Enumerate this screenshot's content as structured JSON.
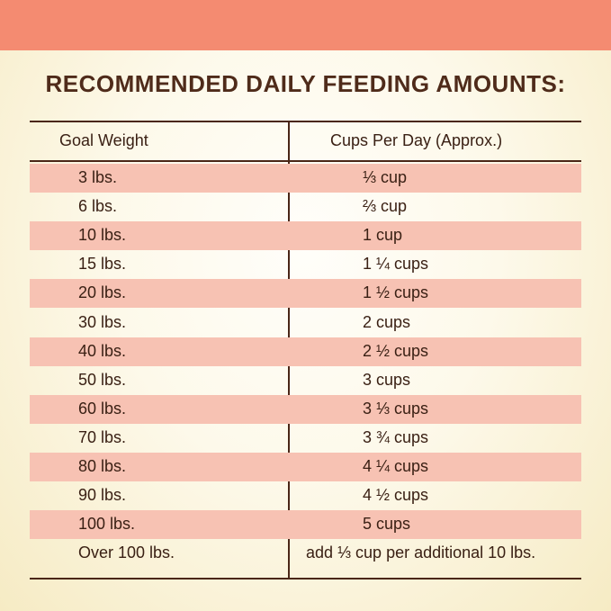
{
  "header": {
    "band_color": "#f48b71",
    "title": "RECOMMENDED DAILY FEEDING AMOUNTS:"
  },
  "table": {
    "columns": [
      "Goal Weight",
      "Cups Per Day (Approx.)"
    ],
    "rows": [
      {
        "weight": "3 lbs.",
        "cups": "⅓ cup"
      },
      {
        "weight": "6 lbs.",
        "cups": "⅔ cup"
      },
      {
        "weight": "10 lbs.",
        "cups": "1 cup"
      },
      {
        "weight": "15 lbs.",
        "cups": "1 ¼ cups"
      },
      {
        "weight": "20 lbs.",
        "cups": "1 ½ cups"
      },
      {
        "weight": "30 lbs.",
        "cups": "2 cups"
      },
      {
        "weight": "40 lbs.",
        "cups": "2 ½ cups"
      },
      {
        "weight": "50 lbs.",
        "cups": "3 cups"
      },
      {
        "weight": "60 lbs.",
        "cups": "3 ⅓ cups"
      },
      {
        "weight": "70 lbs.",
        "cups": "3 ¾ cups"
      },
      {
        "weight": "80 lbs.",
        "cups": "4 ¼ cups"
      },
      {
        "weight": "90 lbs.",
        "cups": "4 ½ cups"
      },
      {
        "weight": "100 lbs.",
        "cups": "5 cups"
      },
      {
        "weight": "Over 100 lbs.",
        "cups": "add ⅓ cup per additional 10 lbs."
      }
    ],
    "row_shade_color": "#f7c2b3",
    "line_color": "#4a2617"
  }
}
